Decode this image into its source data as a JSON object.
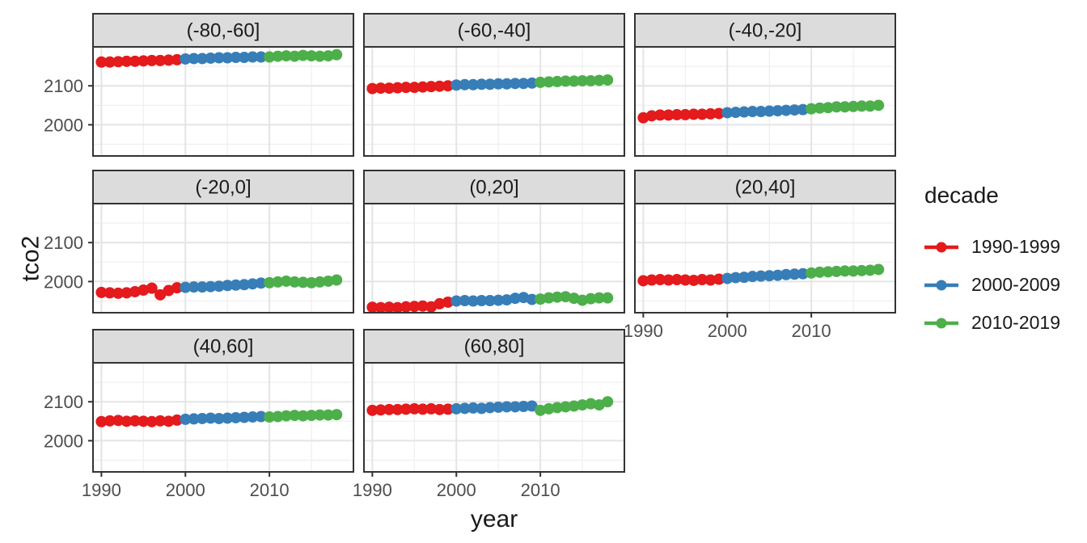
{
  "chart_data": {
    "type": "scatter",
    "xlabel": "year",
    "ylabel": "tco2",
    "legend_title": "decade",
    "legend_position": "right",
    "grid": true,
    "x_ticks": [
      1990,
      2000,
      2010
    ],
    "x_minor_ticks": [
      1995,
      2005,
      2015
    ],
    "y_ticks": [
      2000,
      2100
    ],
    "y_minor_ticks": [
      1950,
      2050,
      2150
    ],
    "xlim": [
      1989,
      2020
    ],
    "ylim": [
      1920,
      2200
    ],
    "x": [
      1990,
      1991,
      1992,
      1993,
      1994,
      1995,
      1996,
      1997,
      1998,
      1999,
      2000,
      2001,
      2002,
      2003,
      2004,
      2005,
      2006,
      2007,
      2008,
      2009,
      2010,
      2011,
      2012,
      2013,
      2014,
      2015,
      2016,
      2017,
      2018
    ],
    "decades": [
      {
        "label": "1990-1999",
        "color": "#E41A1C",
        "start": 1990,
        "end": 1999
      },
      {
        "label": "2000-2009",
        "color": "#377EB8",
        "start": 2000,
        "end": 2009
      },
      {
        "label": "2010-2019",
        "color": "#4DAF4A",
        "start": 2010,
        "end": 2019
      }
    ],
    "facets": [
      {
        "label": "(-80,-60]",
        "values": [
          2161,
          2161,
          2162,
          2163,
          2163,
          2164,
          2165,
          2165,
          2166,
          2167,
          2169,
          2170,
          2170,
          2171,
          2172,
          2172,
          2173,
          2173,
          2174,
          2174,
          2174,
          2176,
          2177,
          2176,
          2178,
          2177,
          2176,
          2177,
          2180
        ]
      },
      {
        "label": "(-60,-40]",
        "values": [
          2093,
          2094,
          2094,
          2095,
          2096,
          2096,
          2097,
          2098,
          2099,
          2100,
          2102,
          2103,
          2103,
          2104,
          2104,
          2105,
          2105,
          2106,
          2106,
          2107,
          2109,
          2110,
          2111,
          2112,
          2112,
          2113,
          2113,
          2114,
          2115
        ]
      },
      {
        "label": "(-40,-20]",
        "values": [
          2018,
          2023,
          2025,
          2025,
          2026,
          2026,
          2027,
          2027,
          2028,
          2029,
          2031,
          2032,
          2033,
          2034,
          2034,
          2035,
          2036,
          2037,
          2038,
          2039,
          2041,
          2043,
          2044,
          2046,
          2046,
          2047,
          2048,
          2048,
          2050
        ]
      },
      {
        "label": "(-20,0]",
        "values": [
          1972,
          1971,
          1970,
          1971,
          1974,
          1978,
          1983,
          1966,
          1977,
          1984,
          1985,
          1986,
          1986,
          1987,
          1988,
          1990,
          1991,
          1992,
          1994,
          1996,
          1997,
          1999,
          2001,
          1999,
          1998,
          1997,
          1999,
          2001,
          2004
        ]
      },
      {
        "label": "(0,20]",
        "values": [
          1934,
          1933,
          1934,
          1933,
          1935,
          1936,
          1937,
          1935,
          1943,
          1947,
          1950,
          1951,
          1950,
          1951,
          1951,
          1952,
          1953,
          1957,
          1959,
          1954,
          1955,
          1958,
          1960,
          1961,
          1957,
          1952,
          1956,
          1958,
          1958
        ]
      },
      {
        "label": "(20,40]",
        "values": [
          2002,
          2004,
          2005,
          2004,
          2005,
          2004,
          2003,
          2005,
          2004,
          2006,
          2008,
          2010,
          2011,
          2013,
          2014,
          2015,
          2016,
          2018,
          2019,
          2020,
          2022,
          2024,
          2025,
          2026,
          2027,
          2027,
          2028,
          2029,
          2031
        ]
      },
      {
        "label": "(40,60]",
        "values": [
          2049,
          2051,
          2052,
          2050,
          2051,
          2050,
          2049,
          2051,
          2050,
          2053,
          2055,
          2056,
          2057,
          2058,
          2057,
          2058,
          2059,
          2060,
          2061,
          2062,
          2061,
          2062,
          2064,
          2065,
          2064,
          2065,
          2066,
          2066,
          2067
        ]
      },
      {
        "label": "(60,80]",
        "values": [
          2078,
          2079,
          2080,
          2080,
          2081,
          2082,
          2081,
          2082,
          2080,
          2081,
          2082,
          2083,
          2084,
          2083,
          2085,
          2086,
          2087,
          2087,
          2088,
          2089,
          2078,
          2082,
          2085,
          2087,
          2089,
          2092,
          2095,
          2092,
          2100
        ]
      }
    ]
  },
  "colors": {
    "background": "#FFFFFF",
    "strip_background": "#DCDCDC",
    "panel_border": "#333333",
    "grid_major": "#E4E4E4",
    "grid_minor": "#EFEFEF",
    "tick_label": "#4D4D4D",
    "strip_label": "#1A1A1A",
    "axis_title": "#1A1A1A"
  }
}
